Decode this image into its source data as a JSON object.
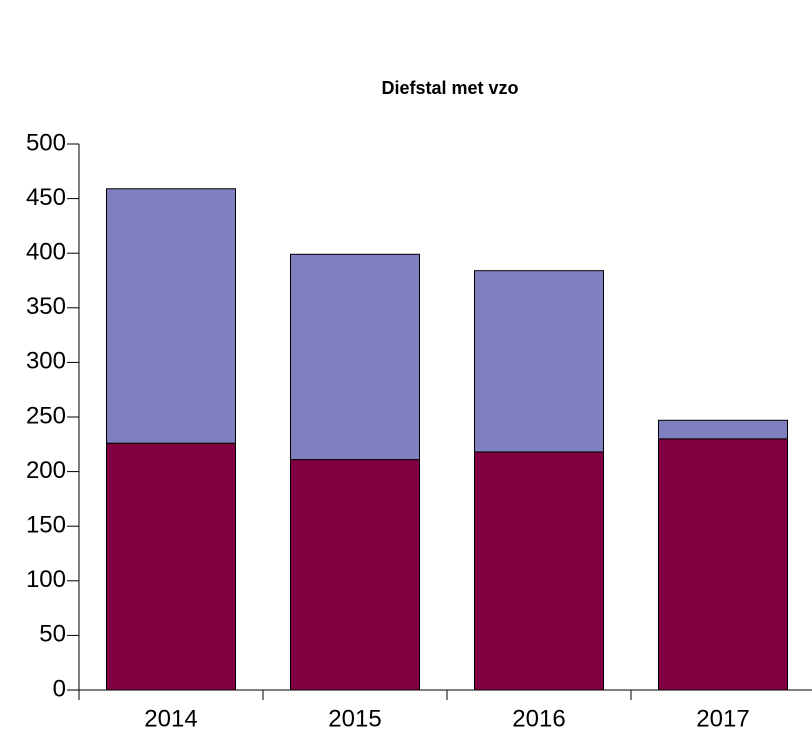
{
  "chart_data": {
    "type": "stacked_bar",
    "title": "Diefstal met vzo",
    "categories": [
      "2014",
      "2015",
      "2016",
      "2017"
    ],
    "series": [
      {
        "color": "#800040",
        "values": [
          226,
          211,
          218,
          230
        ]
      },
      {
        "color": "#8080c0",
        "values": [
          233,
          188,
          166,
          17
        ]
      }
    ],
    "ylim": [
      0,
      500
    ],
    "yticks": [
      0,
      50,
      100,
      150,
      200,
      250,
      300,
      350,
      400,
      450,
      500
    ],
    "grid": false
  }
}
